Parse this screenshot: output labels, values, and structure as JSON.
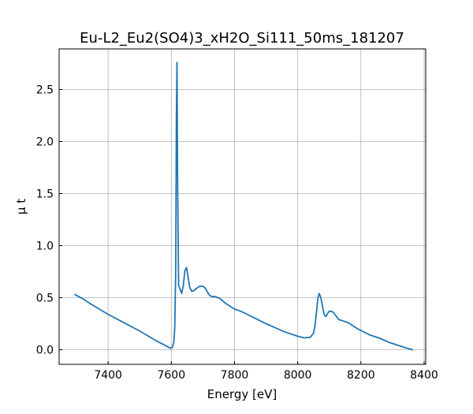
{
  "chart_data": {
    "type": "line",
    "title": "Eu-L2_Eu2(SO4)3_xH2O_Si111_50ms_181207",
    "xlabel": "Energy [eV]",
    "ylabel": "μ t",
    "xlim": [
      7245,
      8405
    ],
    "ylim": [
      -0.14,
      2.89
    ],
    "xticks": [
      7400,
      7600,
      7800,
      8000,
      8200,
      8400
    ],
    "yticks": [
      0.0,
      0.5,
      1.0,
      1.5,
      2.0,
      2.5
    ],
    "xtick_labels": [
      "7400",
      "7600",
      "7800",
      "8000",
      "8200",
      "8400"
    ],
    "ytick_labels": [
      "0.0",
      "0.5",
      "1.0",
      "1.5",
      "2.0",
      "2.5"
    ],
    "grid": true,
    "series": [
      {
        "color": "#1f77b4",
        "x": [
          7295,
          7320,
          7350,
          7400,
          7450,
          7500,
          7550,
          7585,
          7597,
          7603,
          7608,
          7611,
          7614,
          7616,
          7618,
          7620,
          7623,
          7628,
          7633,
          7638,
          7643,
          7648,
          7652,
          7658,
          7665,
          7672,
          7680,
          7690,
          7700,
          7708,
          7715,
          7722,
          7730,
          7740,
          7755,
          7770,
          7785,
          7800,
          7820,
          7840,
          7860,
          7880,
          7900,
          7930,
          7960,
          8000,
          8020,
          8040,
          8050,
          8055,
          8060,
          8064,
          8068,
          8072,
          8076,
          8080,
          8085,
          8090,
          8095,
          8100,
          8105,
          8112,
          8120,
          8130,
          8140,
          8150,
          8160,
          8175,
          8190,
          8210,
          8230,
          8260,
          8290,
          8320,
          8340,
          8363
        ],
        "y": [
          0.53,
          0.49,
          0.43,
          0.34,
          0.26,
          0.18,
          0.09,
          0.035,
          0.015,
          0.02,
          0.07,
          0.22,
          0.8,
          2.2,
          2.76,
          1.6,
          0.62,
          0.58,
          0.54,
          0.62,
          0.76,
          0.79,
          0.72,
          0.6,
          0.56,
          0.57,
          0.59,
          0.61,
          0.61,
          0.59,
          0.55,
          0.52,
          0.51,
          0.51,
          0.49,
          0.45,
          0.42,
          0.39,
          0.37,
          0.34,
          0.31,
          0.28,
          0.25,
          0.21,
          0.17,
          0.13,
          0.115,
          0.12,
          0.16,
          0.24,
          0.38,
          0.5,
          0.54,
          0.51,
          0.46,
          0.39,
          0.33,
          0.32,
          0.35,
          0.37,
          0.37,
          0.36,
          0.33,
          0.29,
          0.28,
          0.27,
          0.26,
          0.23,
          0.2,
          0.17,
          0.14,
          0.11,
          0.07,
          0.04,
          0.02,
          0.0
        ]
      }
    ]
  }
}
